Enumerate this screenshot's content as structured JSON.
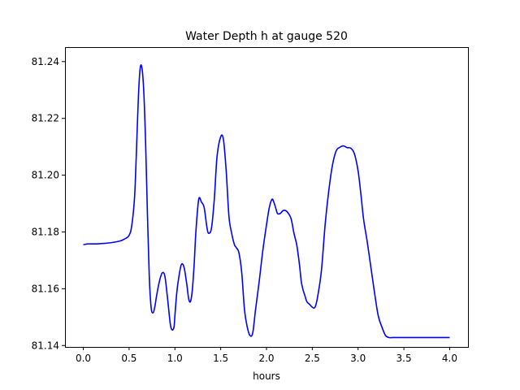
{
  "chart_data": {
    "type": "line",
    "title": "Water Depth h at gauge 520",
    "xlabel": "hours",
    "ylabel": "",
    "xlim": [
      -0.2,
      4.2
    ],
    "ylim": [
      81.1395,
      81.2451
    ],
    "xticks": [
      0.0,
      0.5,
      1.0,
      1.5,
      2.0,
      2.5,
      3.0,
      3.5,
      4.0
    ],
    "xtick_labels": [
      "0.0",
      "0.5",
      "1.0",
      "1.5",
      "2.0",
      "2.5",
      "3.0",
      "3.5",
      "4.0"
    ],
    "yticks": [
      81.14,
      81.16,
      81.18,
      81.2,
      81.22,
      81.24
    ],
    "ytick_labels": [
      "81.14",
      "81.16",
      "81.18",
      "81.20",
      "81.22",
      "81.24"
    ],
    "grid": false,
    "line_color": "#0000ff",
    "series": [
      {
        "x": [
          0.0,
          0.05,
          0.15,
          0.3,
          0.4,
          0.45,
          0.5,
          0.53,
          0.56,
          0.58,
          0.6,
          0.62,
          0.64,
          0.66,
          0.68,
          0.7,
          0.72,
          0.74,
          0.76,
          0.78,
          0.8,
          0.83,
          0.86,
          0.89,
          0.92,
          0.95,
          0.97,
          0.99,
          1.0,
          1.02,
          1.04,
          1.07,
          1.1,
          1.13,
          1.15,
          1.17,
          1.19,
          1.21,
          1.23,
          1.26,
          1.29,
          1.32,
          1.35,
          1.37,
          1.4,
          1.43,
          1.46,
          1.5,
          1.53,
          1.56,
          1.59,
          1.62,
          1.65,
          1.67,
          1.7,
          1.73,
          1.76,
          1.79,
          1.82,
          1.85,
          1.88,
          1.92,
          1.96,
          2.0,
          2.03,
          2.06,
          2.08,
          2.1,
          2.12,
          2.15,
          2.18,
          2.21,
          2.24,
          2.27,
          2.3,
          2.33,
          2.36,
          2.38,
          2.4,
          2.42,
          2.44,
          2.47,
          2.5,
          2.53,
          2.56,
          2.6,
          2.64,
          2.68,
          2.72,
          2.76,
          2.8,
          2.84,
          2.88,
          2.92,
          2.96,
          3.0,
          3.03,
          3.06,
          3.1,
          3.14,
          3.18,
          3.22,
          3.26,
          3.3,
          3.34,
          3.38,
          3.42,
          3.45,
          3.48,
          3.5,
          3.52,
          3.55,
          3.58,
          3.61,
          3.64,
          3.68,
          3.72,
          3.76,
          3.8,
          3.84,
          3.88,
          3.92,
          3.96,
          4.0
        ],
        "y": [
          81.1755,
          81.1758,
          81.1758,
          81.1762,
          81.1768,
          81.1775,
          81.1788,
          81.1825,
          81.1925,
          81.2085,
          81.2265,
          81.2375,
          81.2378,
          81.2295,
          81.2115,
          81.1865,
          81.1645,
          81.1535,
          81.1515,
          81.1535,
          81.1575,
          81.1625,
          81.1655,
          81.1645,
          81.1565,
          81.1475,
          81.1455,
          81.1465,
          81.1505,
          81.1585,
          81.1635,
          81.1685,
          81.1675,
          81.1615,
          81.1565,
          81.1555,
          81.1595,
          81.1685,
          81.1805,
          81.1915,
          81.1905,
          81.1885,
          81.1815,
          81.1795,
          81.1815,
          81.1915,
          81.2065,
          81.2135,
          81.2125,
          81.2015,
          81.1855,
          81.1795,
          81.1755,
          81.1745,
          81.1725,
          81.1655,
          81.1525,
          81.1465,
          81.1435,
          81.1445,
          81.1525,
          81.1625,
          81.1735,
          81.1825,
          81.1885,
          81.1915,
          81.1905,
          81.1885,
          81.1865,
          81.1865,
          81.1875,
          81.1875,
          81.1865,
          81.1845,
          81.1795,
          81.1755,
          81.1685,
          81.1625,
          81.1595,
          81.1575,
          81.1555,
          81.1545,
          81.1535,
          81.1535,
          81.1575,
          81.1665,
          81.1825,
          81.1945,
          81.2035,
          81.2085,
          81.2098,
          81.2103,
          81.2097,
          81.2095,
          81.2075,
          81.2015,
          81.1935,
          81.1845,
          81.1765,
          81.1675,
          81.1585,
          81.1505,
          81.1465,
          81.1435,
          81.1428,
          81.1428,
          81.1428,
          81.1428,
          81.1428,
          81.1428,
          81.1428,
          81.1428,
          81.1428,
          81.1428,
          81.1428,
          81.1428,
          81.1428,
          81.1428,
          81.1428,
          81.1428,
          81.1428,
          81.1428,
          81.1428,
          81.1428
        ]
      }
    ]
  }
}
